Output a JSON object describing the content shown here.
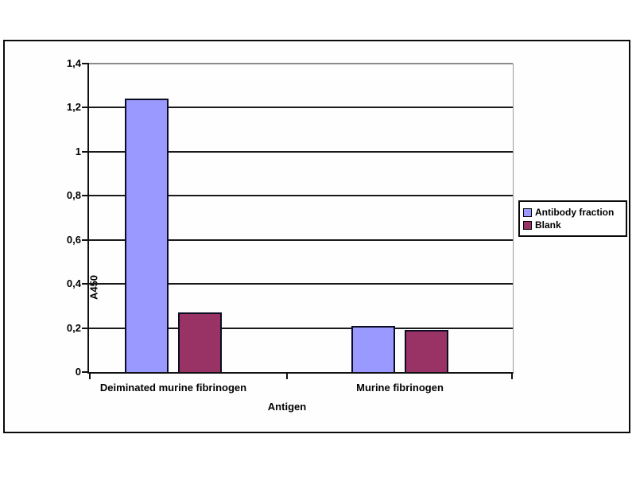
{
  "chart_data": {
    "type": "bar",
    "title": "",
    "categories": [
      "Deiminated murine fibrinogen",
      "Murine fibrinogen"
    ],
    "series": [
      {
        "name": "Antibody fraction",
        "color": "#9999FF",
        "values": [
          1.24,
          0.21
        ]
      },
      {
        "name": "Blank",
        "color": "#993366",
        "values": [
          0.27,
          0.19
        ]
      }
    ],
    "xlabel": "Antigen",
    "ylabel": "A450",
    "ylim": [
      0,
      1.4
    ],
    "ytick_step": 0.2,
    "ytick_labels": [
      "0",
      "0,2",
      "0,4",
      "0,6",
      "0,8",
      "1",
      "1,2",
      "1,4"
    ],
    "grid": true,
    "gridline_color": "#1a1a1a",
    "top_gridline_color": "#8a8a8a",
    "legend_position": "right",
    "legend_border_color": "#0a0a0a",
    "frame_border_color": "#0a0a0a"
  }
}
